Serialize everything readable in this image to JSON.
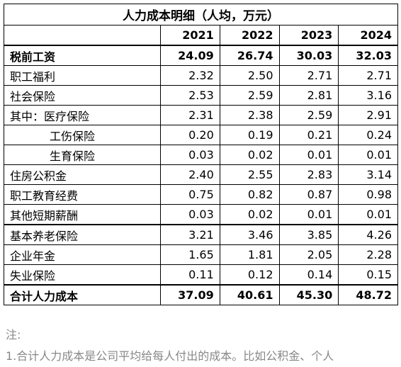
{
  "table": {
    "title": "人力成本明细（人均，万元）",
    "years": [
      "2021",
      "2022",
      "2023",
      "2024"
    ],
    "rows": [
      {
        "label": "税前工资",
        "values": [
          "24.09",
          "26.74",
          "30.03",
          "32.03"
        ]
      },
      {
        "label": "职工福利",
        "values": [
          "2.32",
          "2.50",
          "2.71",
          "2.71"
        ]
      },
      {
        "label": "社会保险",
        "values": [
          "2.53",
          "2.59",
          "2.81",
          "3.16"
        ]
      },
      {
        "label": "其中：医疗保险",
        "values": [
          "2.31",
          "2.38",
          "2.59",
          "2.91"
        ]
      },
      {
        "label": "工伤保险",
        "values": [
          "0.20",
          "0.19",
          "0.21",
          "0.24"
        ]
      },
      {
        "label": "生育保险",
        "values": [
          "0.03",
          "0.02",
          "0.01",
          "0.01"
        ]
      },
      {
        "label": "住房公积金",
        "values": [
          "2.40",
          "2.55",
          "2.83",
          "3.14"
        ]
      },
      {
        "label": "职工教育经费",
        "values": [
          "0.75",
          "0.82",
          "0.87",
          "0.98"
        ]
      },
      {
        "label": "其他短期薪酬",
        "values": [
          "0.03",
          "0.02",
          "0.01",
          "0.01"
        ]
      },
      {
        "label": "基本养老保险",
        "values": [
          "3.21",
          "3.46",
          "3.85",
          "4.26"
        ]
      },
      {
        "label": "企业年金",
        "values": [
          "1.65",
          "1.81",
          "2.05",
          "2.28"
        ]
      },
      {
        "label": "失业保险",
        "values": [
          "0.11",
          "0.12",
          "0.14",
          "0.15"
        ]
      },
      {
        "label": "合计人力成本",
        "values": [
          "37.09",
          "40.61",
          "45.30",
          "48.72"
        ]
      }
    ]
  },
  "notes": {
    "heading": "注:",
    "lines": [
      "1.合计人力成本是公司平均给每人付出的成本。比如公积金、个人"
    ]
  }
}
